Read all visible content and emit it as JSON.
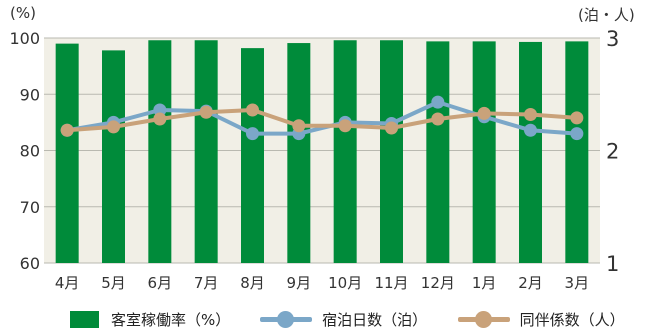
{
  "chart_data": {
    "type": "bar+line",
    "categories": [
      "4月",
      "5月",
      "6月",
      "7月",
      "8月",
      "9月",
      "10月",
      "11月",
      "12月",
      "1月",
      "2月",
      "3月"
    ],
    "left_axis": {
      "unit_label": "(%)",
      "ylim": [
        60,
        100
      ],
      "ticks": [
        "60",
        "70",
        "80",
        "90",
        "100"
      ]
    },
    "right_axis": {
      "unit_label": "(泊・人)",
      "ylim": [
        1,
        3
      ],
      "ticks": [
        "1",
        "2",
        "3"
      ]
    },
    "series": [
      {
        "name": "客室稼働率（%）",
        "type": "bar",
        "axis": "left",
        "color": "#008b3a",
        "values": [
          99.0,
          97.8,
          99.6,
          99.6,
          98.2,
          99.1,
          99.6,
          99.6,
          99.4,
          99.4,
          99.3,
          99.4
        ]
      },
      {
        "name": "宿泊日数（泊）",
        "type": "line",
        "axis": "right",
        "color": "#7ba7c8",
        "values": [
          2.18,
          2.25,
          2.36,
          2.35,
          2.15,
          2.15,
          2.25,
          2.24,
          2.43,
          2.3,
          2.18,
          2.15
        ]
      },
      {
        "name": "同伴係数（人）",
        "type": "line",
        "axis": "right",
        "color": "#c9a27a",
        "values": [
          2.18,
          2.21,
          2.28,
          2.34,
          2.36,
          2.22,
          2.22,
          2.2,
          2.28,
          2.33,
          2.32,
          2.29
        ]
      }
    ],
    "grid": true,
    "legend_position": "bottom"
  }
}
